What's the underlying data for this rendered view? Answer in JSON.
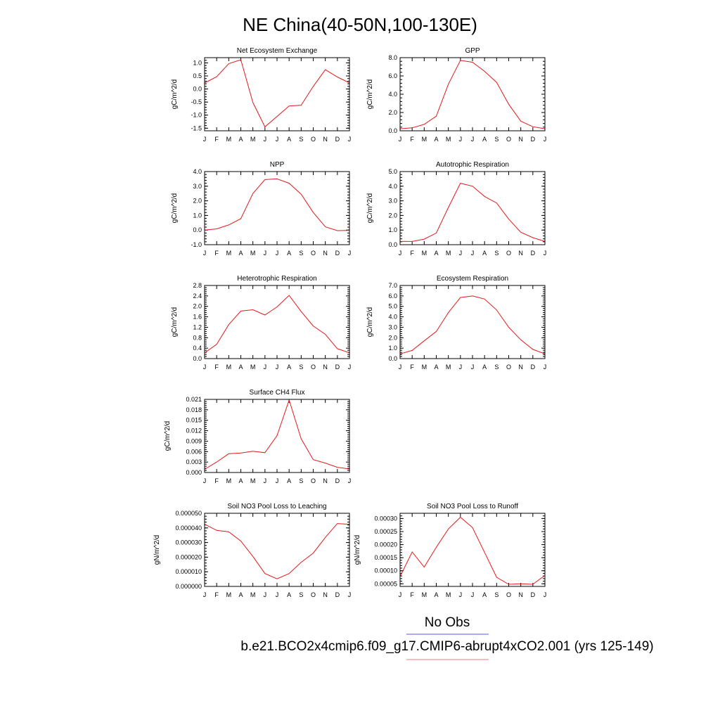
{
  "figure": {
    "title": "NE China(40-50N,100-130E)",
    "legend": [
      {
        "label": "No Obs",
        "color": "#5a5ae6"
      },
      {
        "label": "b.e21.BCO2x4cmip6.f09_g17.CMIP6-abrupt4xCO2.001 (yrs 125-149)",
        "color": "#f07a7a"
      }
    ]
  },
  "chart_data": [
    {
      "type": "line",
      "title": "Net Ecosystem Exchange",
      "ylabel": "gC/m^2/d",
      "categories": [
        "J",
        "F",
        "M",
        "A",
        "M",
        "J",
        "J",
        "A",
        "S",
        "O",
        "N",
        "D",
        "J"
      ],
      "ylim": [
        -1.6,
        1.2
      ],
      "yticks": [
        "-1.5",
        "-1.0",
        "-0.5",
        "0.0",
        "0.5",
        "1.0"
      ],
      "ytick_values": [
        -1.5,
        -1.0,
        -0.5,
        0.0,
        0.5,
        1.0
      ],
      "series": [
        {
          "color": "#e31a1c",
          "values": [
            0.23,
            0.47,
            0.97,
            1.12,
            -0.52,
            -1.45,
            -1.05,
            -0.65,
            -0.62,
            0.1,
            0.74,
            0.46,
            0.23
          ]
        }
      ]
    },
    {
      "type": "line",
      "title": "GPP",
      "ylabel": "gC/m^2/d",
      "categories": [
        "J",
        "F",
        "M",
        "A",
        "M",
        "J",
        "J",
        "A",
        "S",
        "O",
        "N",
        "D",
        "J"
      ],
      "ylim": [
        0,
        8.0
      ],
      "yticks": [
        "0.0",
        "2.0",
        "4.0",
        "6.0",
        "8.0"
      ],
      "ytick_values": [
        0,
        2,
        4,
        6,
        8
      ],
      "series": [
        {
          "color": "#e31a1c",
          "values": [
            0.22,
            0.32,
            0.7,
            1.6,
            5.1,
            7.7,
            7.5,
            6.5,
            5.3,
            2.9,
            1.05,
            0.45,
            0.22
          ]
        }
      ]
    },
    {
      "type": "line",
      "title": "NPP",
      "ylabel": "gC/m^2/d",
      "categories": [
        "J",
        "F",
        "M",
        "A",
        "M",
        "J",
        "J",
        "A",
        "S",
        "O",
        "N",
        "D",
        "J"
      ],
      "ylim": [
        -1.0,
        4.0
      ],
      "yticks": [
        "-1.0",
        "0.0",
        "1.0",
        "2.0",
        "3.0",
        "4.0"
      ],
      "ytick_values": [
        -1,
        0,
        1,
        2,
        3,
        4
      ],
      "series": [
        {
          "color": "#e31a1c",
          "values": [
            0.0,
            0.08,
            0.35,
            0.78,
            2.5,
            3.45,
            3.5,
            3.2,
            2.45,
            1.2,
            0.22,
            -0.04,
            -0.02
          ]
        }
      ]
    },
    {
      "type": "line",
      "title": "Autotrophic Respiration",
      "ylabel": "gC/m^2/d",
      "categories": [
        "J",
        "F",
        "M",
        "A",
        "M",
        "J",
        "J",
        "A",
        "S",
        "O",
        "N",
        "D",
        "J"
      ],
      "ylim": [
        0,
        5.0
      ],
      "yticks": [
        "0.0",
        "1.0",
        "2.0",
        "3.0",
        "4.0",
        "5.0"
      ],
      "ytick_values": [
        0,
        1,
        2,
        3,
        4,
        5
      ],
      "series": [
        {
          "color": "#e31a1c",
          "values": [
            0.22,
            0.22,
            0.38,
            0.8,
            2.55,
            4.2,
            4.0,
            3.3,
            2.85,
            1.75,
            0.85,
            0.48,
            0.22
          ]
        }
      ]
    },
    {
      "type": "line",
      "title": "Heterotrophic Respiration",
      "ylabel": "gC/m^2/d",
      "categories": [
        "J",
        "F",
        "M",
        "A",
        "M",
        "J",
        "J",
        "A",
        "S",
        "O",
        "N",
        "D",
        "J"
      ],
      "ylim": [
        0,
        2.8
      ],
      "yticks": [
        "0.0",
        "0.4",
        "0.8",
        "1.2",
        "1.6",
        "2.0",
        "2.4",
        "2.8"
      ],
      "ytick_values": [
        0,
        0.4,
        0.8,
        1.2,
        1.6,
        2.0,
        2.4,
        2.8
      ],
      "series": [
        {
          "color": "#e31a1c",
          "values": [
            0.22,
            0.55,
            1.3,
            1.82,
            1.87,
            1.67,
            1.98,
            2.42,
            1.8,
            1.25,
            0.93,
            0.38,
            0.22
          ]
        }
      ]
    },
    {
      "type": "line",
      "title": "Ecosystem Respiration",
      "ylabel": "gC/m^2/d",
      "categories": [
        "J",
        "F",
        "M",
        "A",
        "M",
        "J",
        "J",
        "A",
        "S",
        "O",
        "N",
        "D",
        "J"
      ],
      "ylim": [
        0,
        7.0
      ],
      "yticks": [
        "0.0",
        "1.0",
        "2.0",
        "3.0",
        "4.0",
        "5.0",
        "6.0",
        "7.0"
      ],
      "ytick_values": [
        0,
        1,
        2,
        3,
        4,
        5,
        6,
        7
      ],
      "series": [
        {
          "color": "#e31a1c",
          "values": [
            0.45,
            0.78,
            1.7,
            2.6,
            4.4,
            5.85,
            6.0,
            5.7,
            4.65,
            3.0,
            1.8,
            0.88,
            0.45
          ]
        }
      ]
    },
    {
      "type": "line",
      "title": "Surface CH4 Flux",
      "ylabel": "gC/m^2/d",
      "categories": [
        "J",
        "F",
        "M",
        "A",
        "M",
        "J",
        "J",
        "A",
        "S",
        "O",
        "N",
        "D",
        "J"
      ],
      "ylim": [
        0,
        0.021
      ],
      "yticks": [
        "0.000",
        "0.003",
        "0.006",
        "0.009",
        "0.012",
        "0.015",
        "0.018",
        "0.021"
      ],
      "ytick_values": [
        0,
        0.003,
        0.006,
        0.009,
        0.012,
        0.015,
        0.018,
        0.021
      ],
      "series": [
        {
          "color": "#e31a1c",
          "values": [
            0.0009,
            0.003,
            0.0054,
            0.0056,
            0.0061,
            0.0057,
            0.0106,
            0.0208,
            0.0097,
            0.0037,
            0.0027,
            0.0015,
            0.001
          ]
        }
      ]
    },
    {
      "type": "line",
      "title": "Soil NO3 Pool Loss to Leaching",
      "ylabel": "gN/m^2/d",
      "categories": [
        "J",
        "F",
        "M",
        "A",
        "M",
        "J",
        "J",
        "A",
        "S",
        "O",
        "N",
        "D",
        "J"
      ],
      "ylim": [
        0,
        5e-05
      ],
      "yticks": [
        "0.000000",
        "0.000010",
        "0.000020",
        "0.000030",
        "0.000040",
        "0.000050"
      ],
      "ytick_values": [
        0,
        1e-05,
        2e-05,
        3e-05,
        4e-05,
        5e-05
      ],
      "series": [
        {
          "color": "#e31a1c",
          "values": [
            4.25e-05,
            3.83e-05,
            3.73e-05,
            3.1e-05,
            2.05e-05,
            8.8e-06,
            5.2e-06,
            8.8e-06,
            1.65e-05,
            2.28e-05,
            3.35e-05,
            4.3e-05,
            4.25e-05
          ]
        }
      ]
    },
    {
      "type": "line",
      "title": "Soil NO3 Pool Loss to Runoff",
      "ylabel": "gN/m^2/d",
      "categories": [
        "J",
        "F",
        "M",
        "A",
        "M",
        "J",
        "J",
        "A",
        "S",
        "O",
        "N",
        "D",
        "J"
      ],
      "ylim": [
        4e-05,
        0.00032
      ],
      "yticks": [
        "0.00005",
        "0.00010",
        "0.00015",
        "0.00020",
        "0.00025",
        "0.00030"
      ],
      "ytick_values": [
        5e-05,
        0.0001,
        0.00015,
        0.0002,
        0.00025,
        0.0003
      ],
      "series": [
        {
          "color": "#e31a1c",
          "values": [
            7.8e-05,
            0.000172,
            0.000114,
            0.00019,
            0.00026,
            0.000305,
            0.000265,
            0.00017,
            7.5e-05,
            4.8e-05,
            5e-05,
            4.8e-05,
            8.2e-05
          ]
        }
      ]
    }
  ]
}
